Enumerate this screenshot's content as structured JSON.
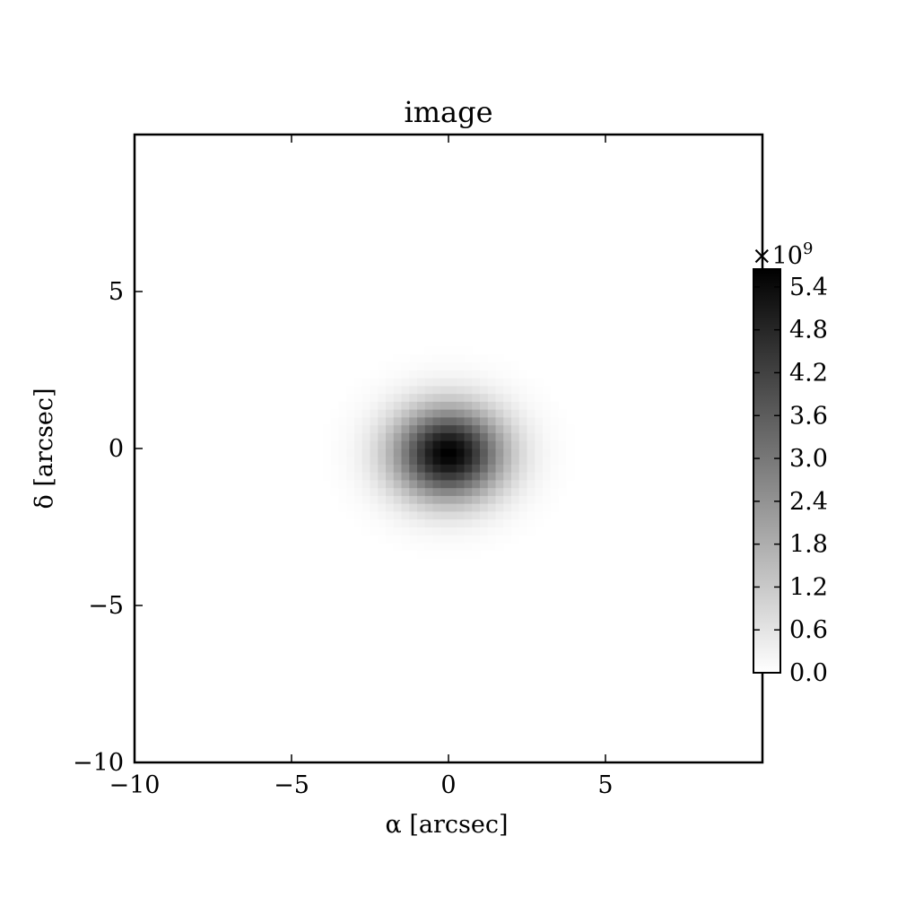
{
  "chart_data": {
    "type": "heatmap",
    "title": "image",
    "xlabel": "α [arcsec]",
    "ylabel": "δ [arcsec]",
    "xlim": [
      -10,
      10
    ],
    "ylim": [
      -10,
      10
    ],
    "xticks": [
      -10,
      -5,
      0,
      5
    ],
    "xtick_labels": [
      "−10",
      "−5",
      "0",
      "5"
    ],
    "yticks": [
      -10,
      -5,
      0,
      5
    ],
    "ytick_labels": [
      "−10",
      "−5",
      "0",
      "5"
    ],
    "image": {
      "description": "single smooth centrally peaked source",
      "center": [
        0.0,
        -0.15
      ],
      "peak_value": 5650000000.0,
      "sigma_x_arcsec": 1.2,
      "sigma_y_arcsec": 1.0,
      "pixel_size_arcsec": 0.25
    },
    "colormap": "gray_r",
    "colorbar": {
      "range": [
        0.0,
        5.65
      ],
      "multiplier_label": "×10",
      "multiplier_exponent": "9",
      "ticks": [
        0.0,
        0.6,
        1.2,
        1.8,
        2.4,
        3.0,
        3.6,
        4.2,
        4.8,
        5.4
      ],
      "tick_labels": [
        "0.0",
        "0.6",
        "1.2",
        "1.8",
        "2.4",
        "3.0",
        "3.6",
        "4.2",
        "4.8",
        "5.4"
      ]
    },
    "grid": false
  }
}
